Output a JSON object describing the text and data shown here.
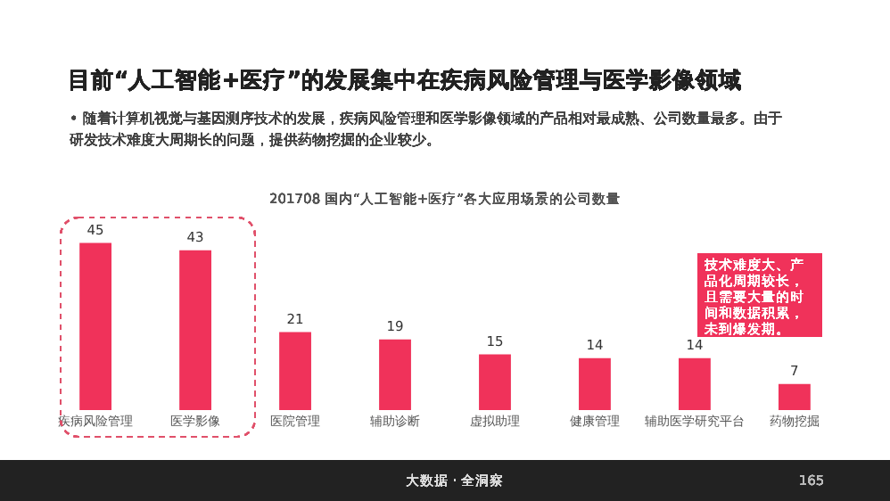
{
  "chart_data": {
    "type": "bar",
    "title": "目前“人工智能+医疗”的发展集中在疾病风险管理与医学影像领域",
    "subtitle": "201708 国内“人工智能+医疗”各大应用场景的公司数量",
    "categories": [
      "疾病风险管理",
      "医学影像",
      "医院管理",
      "辅助诊断",
      "虚拟助理",
      "健康管理",
      "辅助医学研究平台",
      "药物挖掘"
    ],
    "values": [
      45,
      43,
      21,
      19,
      15,
      14,
      14,
      7
    ],
    "color": "#f0325a",
    "data_labels": true,
    "annotations": [
      "• 随着计算机视觉与基因测序技术的发展，疾病风险管理和医学影像领域的产品相对最成熟、公司数量最多。由于研发技术难度大周期长的问题，提供药物挖掘的企业较少。",
      "技术难度大、产品化周期较长，且需要大量的时间和数据积累，未到爆发期。",
      "大数据 · 全洞察",
      "165"
    ]
  }
}
